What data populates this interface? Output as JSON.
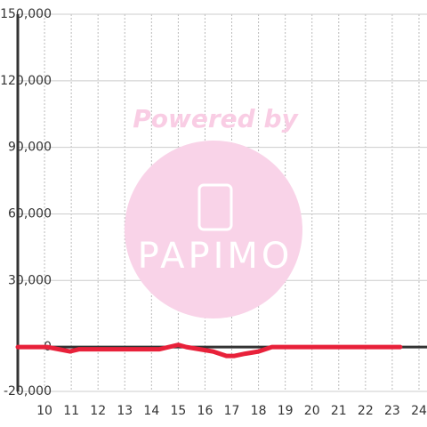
{
  "chart_data": {
    "type": "line",
    "watermark": {
      "text": "Powered by",
      "logo": "PAPIMO"
    },
    "x": [
      9,
      10.1,
      10.95,
      11.3,
      14,
      14.3,
      15,
      15.3,
      15.8,
      16.3,
      16.8,
      17.1,
      17.5,
      18,
      18.5,
      23.3
    ],
    "series": [
      {
        "color": "#e8213a",
        "values": [
          0,
          0,
          -2000,
          -1000,
          -1000,
          -1000,
          1000,
          0,
          -1000,
          -2000,
          -4000,
          -4000,
          -3000,
          -2000,
          0,
          0
        ]
      }
    ],
    "xlim": [
      9,
      24.3
    ],
    "xticks": [
      10,
      11,
      12,
      13,
      14,
      15,
      16,
      17,
      18,
      19,
      20,
      21,
      22,
      23,
      24
    ],
    "ylim": [
      -20000,
      150000
    ],
    "yticks": [
      {
        "value": -20000,
        "label": "-20,000"
      },
      0,
      {
        "value": 30000,
        "label": "30,000"
      },
      {
        "value": 60000,
        "label": "60,000"
      },
      {
        "value": 90000,
        "label": "90,000"
      },
      {
        "value": 120000,
        "label": "120,000"
      },
      {
        "value": 150000,
        "label": "150,000"
      }
    ],
    "grid": true
  }
}
